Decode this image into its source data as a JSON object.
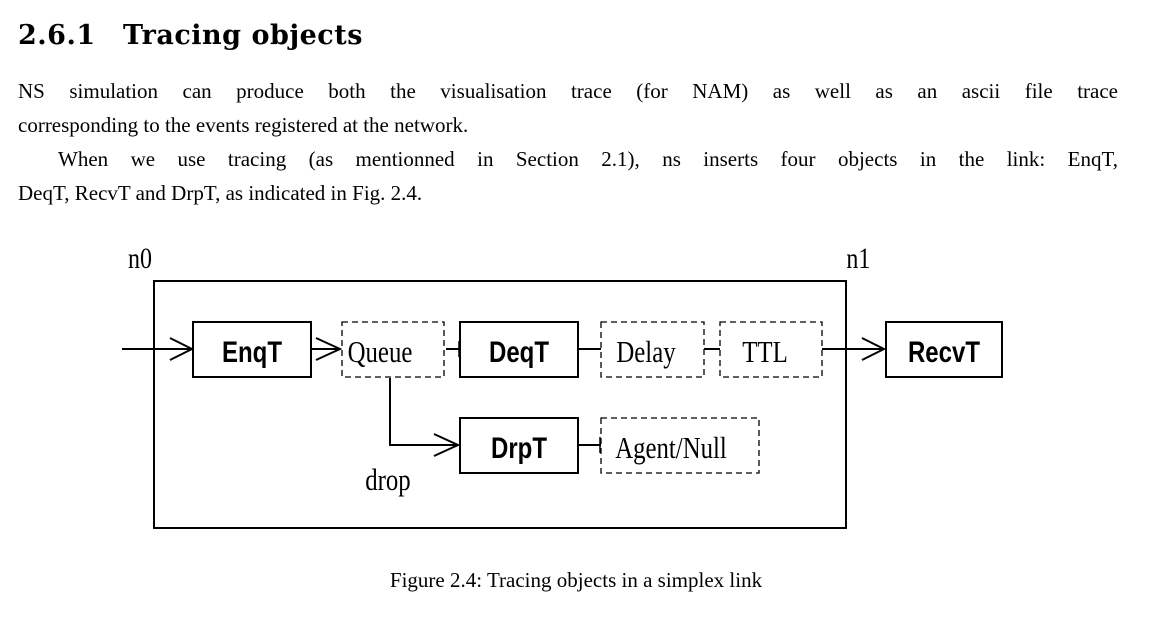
{
  "section": {
    "number": "2.6.1",
    "title": "Tracing objects"
  },
  "paragraphs": {
    "p1_line1": "NS simulation can produce both the visualisation trace (for NAM) as well as an ascii file trace",
    "p1_line2": "corresponding to the events registered at the network.",
    "p2_line1": "When we use tracing (as mentionned in Section 2.1), ns inserts four objects in the link: EnqT,",
    "p2_line2": "DeqT, RecvT and DrpT, as indicated in Fig. 2.4."
  },
  "figure": {
    "node_left": "n0",
    "node_right": "n1",
    "objects": {
      "enqt": "EnqT",
      "queue": "Queue",
      "deqt": "DeqT",
      "delay": "Delay",
      "ttl": "TTL",
      "recvt": "RecvT",
      "drpt": "DrpT",
      "agent_null": "Agent/Null"
    },
    "drop_label": "drop",
    "caption": "Figure 2.4: Tracing objects in a simplex link"
  }
}
